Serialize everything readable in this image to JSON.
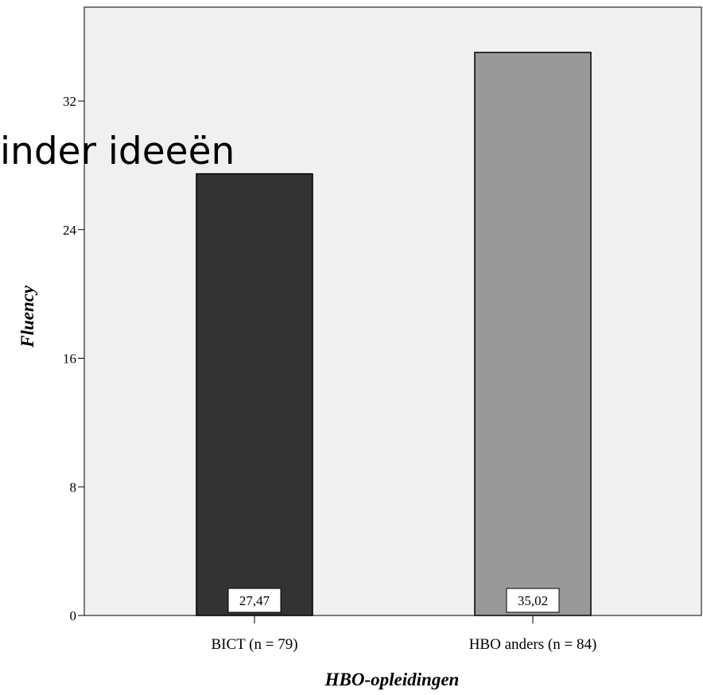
{
  "overlay_caption": "inder ideeën",
  "chart_data": {
    "type": "bar",
    "categories": [
      "BICT (n = 79)",
      "HBO anders (n = 84)"
    ],
    "values": [
      27.47,
      35.02
    ],
    "value_labels": [
      "27,47",
      "35,02"
    ],
    "bar_colors": [
      "#333333",
      "#999999"
    ],
    "plot_background": "#f0f0f0",
    "xlabel": "HBO-opleidingen",
    "ylabel": "Fluency",
    "ylim": [
      0,
      38
    ],
    "yticks": [
      0,
      8,
      16,
      24,
      32
    ],
    "grid": false,
    "legend": "none"
  }
}
